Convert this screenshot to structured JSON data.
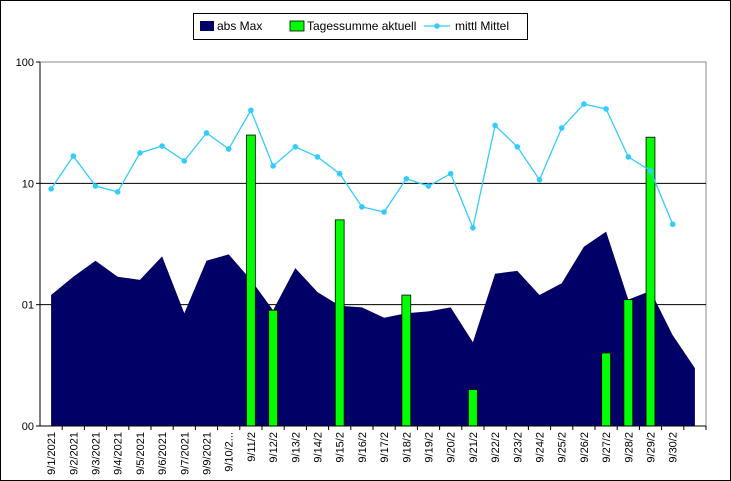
{
  "chart_data": {
    "type": "combo",
    "categories": [
      "9/1/2021",
      "9/2/2021",
      "9/3/2021",
      "9/4/2021",
      "9/5/2021",
      "9/6/2021",
      "9/7/2021",
      "9/9/2021",
      "9/10/2...",
      "9/11/2",
      "9/12/2",
      "9/13/2",
      "9/14/2",
      "9/15/2",
      "9/16/2",
      "9/17/2",
      "9/18/2",
      "9/19/2",
      "9/20/2",
      "9/21/2",
      "9/22/2",
      "9/23/2",
      "9/24/2",
      "9/25/2",
      "9/26/2",
      "9/27/2",
      "9/28/2",
      "9/29/2",
      "9/30/2",
      null
    ],
    "series": [
      {
        "name": "abs Max",
        "type": "area",
        "color": "#000066",
        "values": [
          1.2,
          1.7,
          2.3,
          1.7,
          1.6,
          2.5,
          0.85,
          2.3,
          2.6,
          1.6,
          0.9,
          2.0,
          1.27,
          0.98,
          0.95,
          0.78,
          0.85,
          0.88,
          0.95,
          0.49,
          1.8,
          1.9,
          1.2,
          1.5,
          3.0,
          4.0,
          1.1,
          1.3,
          0.56,
          0.3
        ]
      },
      {
        "name": "Tagessumme aktuell",
        "type": "bar",
        "color": "#00ff00",
        "values": [
          null,
          null,
          null,
          null,
          null,
          null,
          null,
          null,
          null,
          25,
          0.9,
          null,
          null,
          5.0,
          null,
          null,
          1.2,
          null,
          null,
          0.2,
          null,
          null,
          null,
          null,
          null,
          0.4,
          1.1,
          24,
          null,
          null
        ]
      },
      {
        "name": "mittl Mittel",
        "type": "line",
        "color": "#33ccff",
        "values": [
          9.0,
          16.8,
          9.5,
          8.5,
          17.8,
          20.3,
          15.3,
          26,
          19.2,
          40,
          13.9,
          20,
          16.5,
          12,
          6.4,
          5.8,
          10.9,
          9.5,
          12,
          4.3,
          30,
          20,
          10.7,
          28.6,
          45,
          41,
          16.5,
          12.7,
          4.6,
          null
        ]
      }
    ],
    "ylim": [
      0.1,
      100
    ],
    "log_scale": true,
    "yticks": [
      {
        "value": 0.1,
        "label": "00"
      },
      {
        "value": 1,
        "label": "01"
      },
      10,
      100
    ],
    "grid": true,
    "legend": "top"
  }
}
